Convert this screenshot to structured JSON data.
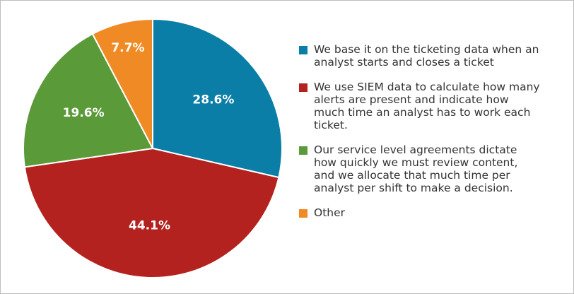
{
  "chart_data": {
    "type": "pie",
    "categories": [
      "We base it on the ticketing data when an analyst starts and closes a ticket",
      "We use SIEM data to calculate how many alerts are present and indicate how much time an analyst has to work each ticket.",
      "Our service level agreements dictate how quickly we must review content, and we allocate that much time per analyst per shift to make a decision.",
      "Other"
    ],
    "values": [
      28.6,
      44.1,
      19.6,
      7.7
    ],
    "value_labels": [
      "28.6%",
      "44.1%",
      "19.6%",
      "7.7%"
    ],
    "colors": [
      "#0a7ea6",
      "#b3221e",
      "#5a9a38",
      "#f08a24"
    ]
  }
}
